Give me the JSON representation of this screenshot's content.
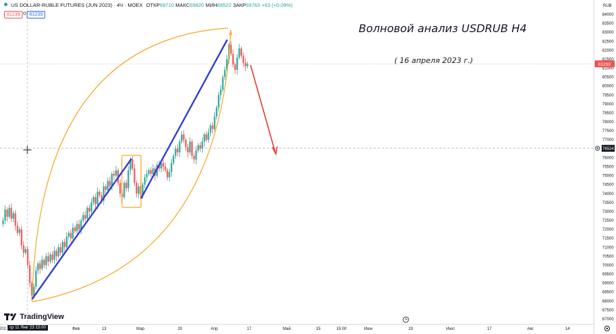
{
  "header": {
    "symbol": "US DOLLAR-RUBLE FUTURES (JUN 2023) · 4Ч · MOEX",
    "open_label": "ОТКР",
    "open_value": "69710",
    "high_label": "МАКС",
    "high_value": "69820",
    "low_label": "МИН",
    "low_value": "69522",
    "close_label": "ЗАКР",
    "close_value": "69763",
    "change": "+63 (+0.09%)",
    "sell_price": "81239",
    "spread": "0",
    "buy_price": "81239"
  },
  "annotations": {
    "title": "Волновой анализ USDRUB H4",
    "date": "( 16 апреля 2023 г.)"
  },
  "branding": {
    "logo_text": "TradingView"
  },
  "crosshair_time_label": "ср 11 Янв '23  15:00",
  "colors": {
    "up": "#26a69a",
    "down": "#ef5350",
    "impulse": "#2e3ed6",
    "arc": "#f5a623",
    "forecast": "#e53935",
    "price_tag": "#ef5350",
    "crosshair_tag": "#131722"
  },
  "chart_data": {
    "type": "candlestick",
    "currency_label": "RUB",
    "y_ticks": [
      67000,
      67500,
      68000,
      68500,
      69000,
      69500,
      70000,
      70500,
      71000,
      71500,
      72000,
      72500,
      73000,
      73500,
      74000,
      74500,
      75000,
      75500,
      76000,
      76500,
      77000,
      77500,
      78000,
      78500,
      79000,
      79500,
      80000,
      80500,
      81000,
      81500,
      82000,
      82500,
      83000,
      83500,
      84000
    ],
    "ylim": [
      66800,
      84500
    ],
    "x_ticks": [
      "202",
      "Фев",
      "13",
      "Мар",
      "20",
      "Апр",
      "17",
      "Май",
      "15",
      "15:00",
      "Июн",
      "19",
      "Июл",
      "17",
      "Авг",
      "14"
    ],
    "last_price": "81239",
    "crosshair_price": "76524",
    "price_path": [
      [
        0,
        72300
      ],
      [
        3,
        72500
      ],
      [
        6,
        73100
      ],
      [
        9,
        72700
      ],
      [
        12,
        73200
      ],
      [
        15,
        72600
      ],
      [
        18,
        72900
      ],
      [
        21,
        72200
      ],
      [
        24,
        71800
      ],
      [
        27,
        72000
      ],
      [
        30,
        71100
      ],
      [
        33,
        70700
      ],
      [
        36,
        70900
      ],
      [
        39,
        70000
      ],
      [
        42,
        69000
      ],
      [
        45,
        68300
      ],
      [
        48,
        68800
      ],
      [
        51,
        69700
      ],
      [
        54,
        70100
      ],
      [
        57,
        69800
      ],
      [
        60,
        70300
      ],
      [
        63,
        70000
      ],
      [
        66,
        70500
      ],
      [
        69,
        70200
      ],
      [
        72,
        70600
      ],
      [
        75,
        70300
      ],
      [
        78,
        70800
      ],
      [
        81,
        70500
      ],
      [
        84,
        71000
      ],
      [
        87,
        70700
      ],
      [
        90,
        71300
      ],
      [
        93,
        71000
      ],
      [
        96,
        71600
      ],
      [
        99,
        71800
      ],
      [
        102,
        71500
      ],
      [
        105,
        72100
      ],
      [
        108,
        71900
      ],
      [
        111,
        72300
      ],
      [
        114,
        72000
      ],
      [
        117,
        72500
      ],
      [
        120,
        72800
      ],
      [
        123,
        72600
      ],
      [
        126,
        73200
      ],
      [
        129,
        73000
      ],
      [
        132,
        73500
      ],
      [
        135,
        73800
      ],
      [
        138,
        73400
      ],
      [
        141,
        74100
      ],
      [
        144,
        73900
      ],
      [
        147,
        73600
      ],
      [
        150,
        74400
      ],
      [
        153,
        74200
      ],
      [
        156,
        74700
      ],
      [
        159,
        74400
      ],
      [
        162,
        75100
      ],
      [
        165,
        75000
      ],
      [
        168,
        75300
      ],
      [
        171,
        74600
      ],
      [
        174,
        74000
      ],
      [
        177,
        73800
      ],
      [
        180,
        74600
      ],
      [
        183,
        74300
      ],
      [
        186,
        75300
      ],
      [
        189,
        75900
      ],
      [
        192,
        75400
      ],
      [
        195,
        74600
      ],
      [
        198,
        74000
      ],
      [
        201,
        74400
      ],
      [
        204,
        73900
      ],
      [
        207,
        74500
      ],
      [
        210,
        74900
      ],
      [
        213,
        75100
      ],
      [
        216,
        75300
      ],
      [
        219,
        75100
      ],
      [
        222,
        75400
      ],
      [
        225,
        75000
      ],
      [
        228,
        75600
      ],
      [
        231,
        75400
      ],
      [
        234,
        75700
      ],
      [
        237,
        75500
      ],
      [
        240,
        75300
      ],
      [
        243,
        74900
      ],
      [
        246,
        75200
      ],
      [
        249,
        75700
      ],
      [
        252,
        76100
      ],
      [
        255,
        76500
      ],
      [
        258,
        76300
      ],
      [
        261,
        76900
      ],
      [
        264,
        77300
      ],
      [
        267,
        77000
      ],
      [
        270,
        76600
      ],
      [
        273,
        76300
      ],
      [
        276,
        76900
      ],
      [
        279,
        76100
      ],
      [
        282,
        75900
      ],
      [
        285,
        76400
      ],
      [
        288,
        76700
      ],
      [
        291,
        76500
      ],
      [
        294,
        76900
      ],
      [
        297,
        77300
      ],
      [
        300,
        77000
      ],
      [
        303,
        77400
      ],
      [
        306,
        77800
      ],
      [
        309,
        77600
      ],
      [
        312,
        78300
      ],
      [
        315,
        78800
      ],
      [
        318,
        79500
      ],
      [
        321,
        79800
      ],
      [
        324,
        80500
      ],
      [
        327,
        80900
      ],
      [
        330,
        81500
      ],
      [
        333,
        82300
      ],
      [
        336,
        81800
      ],
      [
        339,
        81200
      ],
      [
        342,
        80900
      ],
      [
        345,
        81600
      ],
      [
        348,
        82100
      ],
      [
        351,
        81700
      ],
      [
        354,
        81300
      ],
      [
        357,
        81100
      ],
      [
        360,
        81239
      ]
    ]
  }
}
